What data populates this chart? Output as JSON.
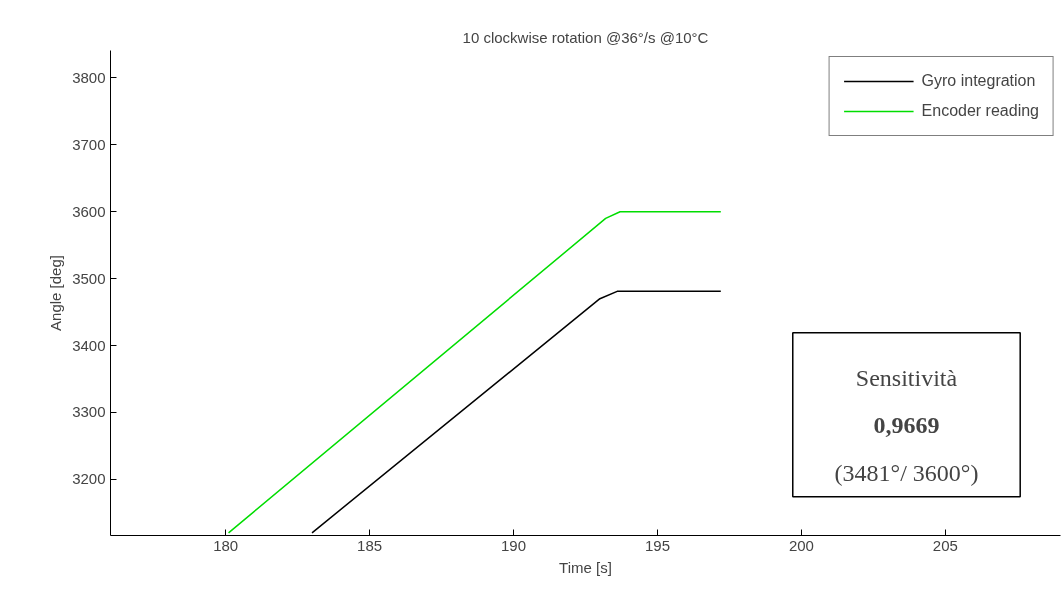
{
  "chart_data": {
    "type": "line",
    "title": "10 clockwise rotation @36°/s @10°C",
    "xlabel": "Time [s]",
    "ylabel": "Angle [deg]",
    "xlim": [
      176,
      209
    ],
    "xticks": [
      180,
      185,
      190,
      195,
      200,
      205
    ],
    "ylim": [
      3116,
      3841
    ],
    "yticks": [
      3200,
      3300,
      3400,
      3500,
      3600,
      3700,
      3800
    ],
    "grid": false,
    "legend": "top right",
    "line_style": "solid",
    "marker": "none",
    "series": [
      {
        "name": "Gyro integration",
        "color": "#000000",
        "x": [
          183.0,
          193.0,
          193.6,
          197.2
        ],
        "values": [
          3120,
          3470,
          3481,
          3481
        ]
      },
      {
        "name": "Encoder reading",
        "color": "#00dd00",
        "x": [
          180.1,
          193.2,
          193.7,
          197.2
        ],
        "values": [
          3120,
          3590,
          3600,
          3600
        ]
      }
    ],
    "annotations": [
      "Sensitività",
      "0,9669",
      "(3481°/ 3600°)"
    ]
  }
}
